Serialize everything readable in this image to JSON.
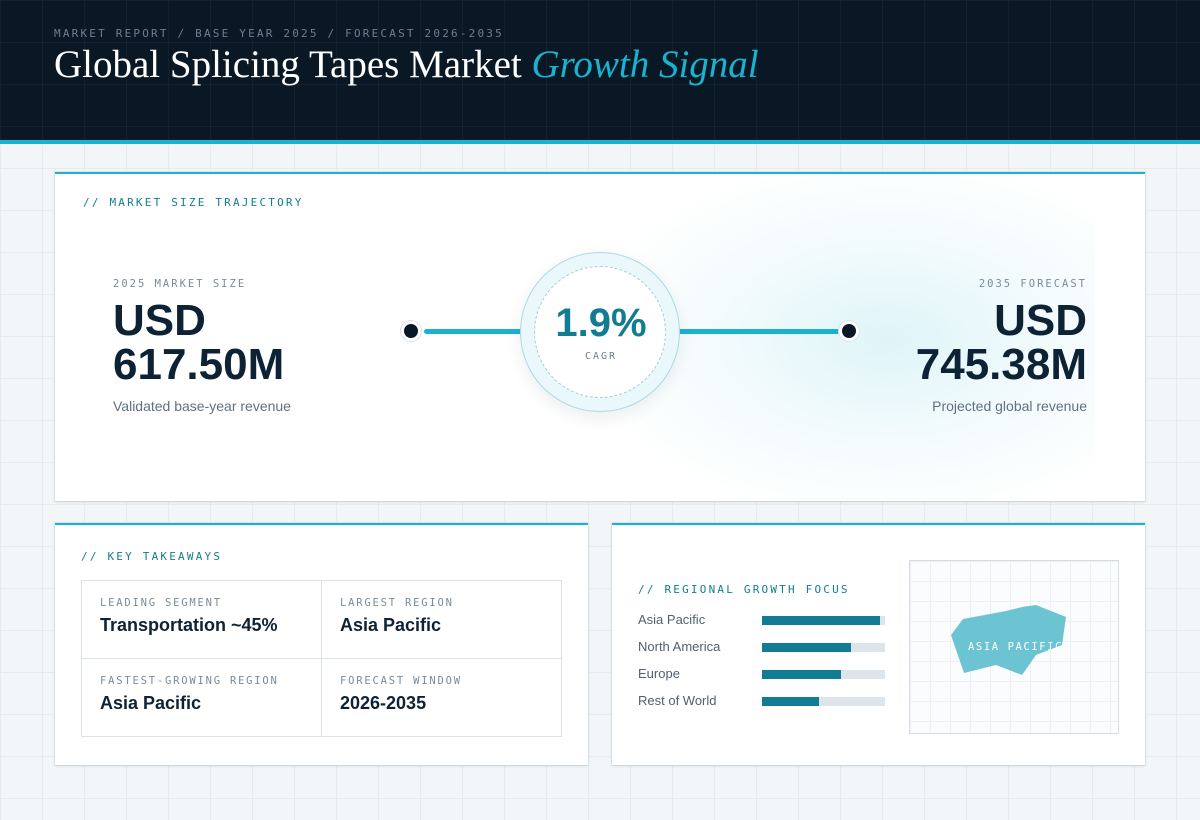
{
  "header": {
    "eyebrow": "MARKET REPORT / BASE YEAR 2025 / FORECAST 2026-2035",
    "title_main": "Global Splicing Tapes Market",
    "title_accent": "Growth Signal"
  },
  "trajectory": {
    "label": "// MARKET SIZE TRAJECTORY",
    "start": {
      "label": "2025 MARKET SIZE",
      "currency": "USD",
      "value": "617.50M",
      "caption": "Validated base-year revenue"
    },
    "end": {
      "label": "2035 FORECAST",
      "currency": "USD",
      "value": "745.38M",
      "caption": "Projected global revenue"
    },
    "cagr": {
      "value": "1.9%",
      "label": "CAGR"
    }
  },
  "takeaways": {
    "label": "// KEY TAKEAWAYS",
    "items": [
      {
        "key": "LEADING SEGMENT",
        "value": "Transportation ~45%"
      },
      {
        "key": "LARGEST REGION",
        "value": "Asia Pacific"
      },
      {
        "key": "FASTEST-GROWING REGION",
        "value": "Asia Pacific"
      },
      {
        "key": "FORECAST WINDOW",
        "value": "2026-2035"
      }
    ]
  },
  "regional": {
    "label": "// REGIONAL GROWTH FOCUS",
    "bars": [
      {
        "name": "Asia Pacific",
        "level": 0.96
      },
      {
        "name": "North America",
        "level": 0.72
      },
      {
        "name": "Europe",
        "level": 0.64
      },
      {
        "name": "Rest of World",
        "level": 0.46
      }
    ],
    "map_label": "ASIA PACIFIC",
    "colors": {
      "bar": "#127d92",
      "track": "#dde5eb",
      "map_shape": "#6cc4d2"
    }
  },
  "colors": {
    "accent": "#19b3cf",
    "accent_dark": "#127d92",
    "header_bg": "#0a1826"
  }
}
